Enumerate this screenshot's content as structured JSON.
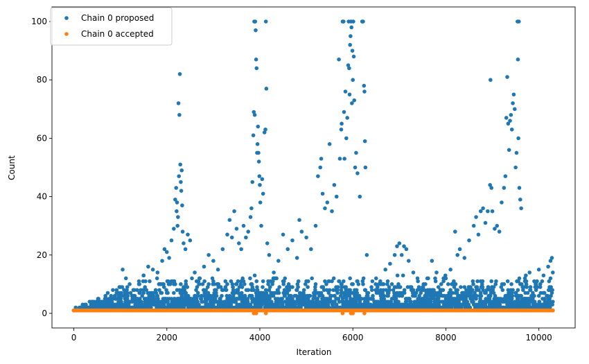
{
  "chart_data": {
    "type": "scatter",
    "xlabel": "Iteration",
    "ylabel": "Count",
    "xlim": [
      -470,
      10780
    ],
    "ylim": [
      -5,
      105
    ],
    "xticks": [
      0,
      2000,
      4000,
      6000,
      8000,
      10000
    ],
    "yticks": [
      0,
      20,
      40,
      60,
      80,
      100
    ],
    "grid": false,
    "legend_position": "upper-left",
    "series": [
      {
        "name": "Chain 0 proposed",
        "color": "#1f77b4",
        "points": [
          [
            0,
            1
          ],
          [
            40,
            1
          ],
          [
            80,
            1
          ],
          [
            120,
            2
          ],
          [
            160,
            1
          ],
          [
            200,
            2
          ],
          [
            260,
            3
          ],
          [
            320,
            2
          ],
          [
            380,
            4
          ],
          [
            450,
            3
          ],
          [
            520,
            5
          ],
          [
            600,
            4
          ],
          [
            680,
            6
          ],
          [
            760,
            5
          ],
          [
            840,
            8
          ],
          [
            920,
            7
          ],
          [
            1000,
            9
          ],
          [
            1050,
            15
          ],
          [
            1120,
            12
          ],
          [
            1200,
            10
          ],
          [
            1300,
            8
          ],
          [
            1400,
            11
          ],
          [
            1500,
            13
          ],
          [
            1600,
            16
          ],
          [
            1700,
            15
          ],
          [
            1800,
            14
          ],
          [
            1900,
            18
          ],
          [
            1950,
            22
          ],
          [
            2000,
            21
          ],
          [
            2050,
            19
          ],
          [
            2100,
            25
          ],
          [
            2150,
            29
          ],
          [
            2180,
            39
          ],
          [
            2200,
            43
          ],
          [
            2210,
            35
          ],
          [
            2220,
            38
          ],
          [
            2230,
            30
          ],
          [
            2240,
            33
          ],
          [
            2250,
            72
          ],
          [
            2260,
            47
          ],
          [
            2270,
            68
          ],
          [
            2280,
            82
          ],
          [
            2290,
            51
          ],
          [
            2300,
            45
          ],
          [
            2310,
            42
          ],
          [
            2320,
            49
          ],
          [
            2330,
            37
          ],
          [
            2340,
            28
          ],
          [
            2360,
            24
          ],
          [
            2400,
            22
          ],
          [
            2450,
            27
          ],
          [
            2500,
            25
          ],
          [
            2600,
            14
          ],
          [
            2700,
            12
          ],
          [
            2800,
            16
          ],
          [
            2900,
            20
          ],
          [
            3000,
            18
          ],
          [
            3100,
            15
          ],
          [
            3200,
            22
          ],
          [
            3300,
            27
          ],
          [
            3350,
            32
          ],
          [
            3400,
            26
          ],
          [
            3450,
            35
          ],
          [
            3500,
            29
          ],
          [
            3550,
            24
          ],
          [
            3600,
            22
          ],
          [
            3650,
            30
          ],
          [
            3700,
            26
          ],
          [
            3750,
            28
          ],
          [
            3800,
            33
          ],
          [
            3820,
            36
          ],
          [
            3840,
            45
          ],
          [
            3860,
            61
          ],
          [
            3870,
            69
          ],
          [
            3880,
            100
          ],
          [
            3890,
            68
          ],
          [
            3900,
            100
          ],
          [
            3910,
            97
          ],
          [
            3920,
            87
          ],
          [
            3930,
            84
          ],
          [
            3940,
            55
          ],
          [
            3950,
            58
          ],
          [
            3960,
            64
          ],
          [
            3970,
            55
          ],
          [
            3980,
            52
          ],
          [
            3990,
            47
          ],
          [
            4000,
            44
          ],
          [
            4010,
            38
          ],
          [
            4030,
            30
          ],
          [
            4050,
            46
          ],
          [
            4070,
            41
          ],
          [
            4100,
            62
          ],
          [
            4120,
            63
          ],
          [
            4130,
            100
          ],
          [
            4140,
            77
          ],
          [
            4160,
            24
          ],
          [
            4200,
            20
          ],
          [
            4300,
            14
          ],
          [
            4400,
            18
          ],
          [
            4500,
            27
          ],
          [
            4600,
            22
          ],
          [
            4700,
            25
          ],
          [
            4800,
            19
          ],
          [
            4850,
            32
          ],
          [
            4900,
            28
          ],
          [
            5000,
            26
          ],
          [
            5100,
            22
          ],
          [
            5200,
            30
          ],
          [
            5250,
            47
          ],
          [
            5300,
            50
          ],
          [
            5320,
            53
          ],
          [
            5350,
            41
          ],
          [
            5400,
            36
          ],
          [
            5450,
            38
          ],
          [
            5500,
            58
          ],
          [
            5550,
            35
          ],
          [
            5600,
            44
          ],
          [
            5650,
            40
          ],
          [
            5700,
            87
          ],
          [
            5720,
            53
          ],
          [
            5750,
            63
          ],
          [
            5760,
            65
          ],
          [
            5780,
            100
          ],
          [
            5800,
            100
          ],
          [
            5810,
            69
          ],
          [
            5820,
            53
          ],
          [
            5840,
            76
          ],
          [
            5860,
            60
          ],
          [
            5880,
            67
          ],
          [
            5900,
            85
          ],
          [
            5910,
            100
          ],
          [
            5920,
            84
          ],
          [
            5930,
            75
          ],
          [
            5940,
            92
          ],
          [
            5950,
            95
          ],
          [
            5960,
            100
          ],
          [
            5970,
            98
          ],
          [
            5980,
            72
          ],
          [
            5990,
            90
          ],
          [
            6000,
            80
          ],
          [
            6010,
            100
          ],
          [
            6020,
            88
          ],
          [
            6030,
            73
          ],
          [
            6050,
            50
          ],
          [
            6070,
            55
          ],
          [
            6100,
            48
          ],
          [
            6150,
            40
          ],
          [
            6200,
            100
          ],
          [
            6220,
            100
          ],
          [
            6240,
            78
          ],
          [
            6250,
            76
          ],
          [
            6260,
            59
          ],
          [
            6270,
            50
          ],
          [
            6300,
            20
          ],
          [
            6400,
            9
          ],
          [
            6500,
            12
          ],
          [
            6600,
            10
          ],
          [
            6700,
            15
          ],
          [
            6800,
            17
          ],
          [
            6900,
            20
          ],
          [
            6950,
            23
          ],
          [
            7000,
            24
          ],
          [
            7050,
            20
          ],
          [
            7100,
            23
          ],
          [
            7150,
            22
          ],
          [
            7200,
            18
          ],
          [
            7300,
            14
          ],
          [
            7400,
            11
          ],
          [
            7500,
            9
          ],
          [
            7600,
            12
          ],
          [
            7700,
            18
          ],
          [
            7800,
            14
          ],
          [
            7900,
            10
          ],
          [
            8000,
            12
          ],
          [
            8100,
            15
          ],
          [
            8200,
            28
          ],
          [
            8250,
            20
          ],
          [
            8300,
            22
          ],
          [
            8400,
            19
          ],
          [
            8500,
            25
          ],
          [
            8600,
            30
          ],
          [
            8650,
            33
          ],
          [
            8700,
            27
          ],
          [
            8750,
            35
          ],
          [
            8800,
            36
          ],
          [
            8850,
            31
          ],
          [
            8900,
            35
          ],
          [
            8950,
            44
          ],
          [
            8960,
            80
          ],
          [
            8980,
            43
          ],
          [
            9000,
            35
          ],
          [
            9050,
            29
          ],
          [
            9100,
            30
          ],
          [
            9150,
            28
          ],
          [
            9200,
            38
          ],
          [
            9250,
            43
          ],
          [
            9280,
            47
          ],
          [
            9300,
            67
          ],
          [
            9320,
            81
          ],
          [
            9340,
            65
          ],
          [
            9360,
            56
          ],
          [
            9380,
            66
          ],
          [
            9400,
            68
          ],
          [
            9420,
            63
          ],
          [
            9440,
            72
          ],
          [
            9460,
            75
          ],
          [
            9480,
            70
          ],
          [
            9500,
            50
          ],
          [
            9520,
            55
          ],
          [
            9540,
            100
          ],
          [
            9550,
            87
          ],
          [
            9560,
            60
          ],
          [
            9570,
            100
          ],
          [
            9580,
            43
          ],
          [
            9600,
            39
          ],
          [
            9620,
            36
          ],
          [
            9700,
            12
          ],
          [
            9800,
            14
          ],
          [
            9900,
            11
          ],
          [
            10000,
            15
          ],
          [
            10100,
            13
          ],
          [
            10200,
            16
          ],
          [
            10250,
            18
          ],
          [
            10280,
            19
          ],
          [
            10300,
            14
          ]
        ]
      },
      {
        "name": "Chain 0 accepted",
        "color": "#ff7f0e",
        "points": [
          [
            0,
            1
          ],
          [
            200,
            1
          ],
          [
            500,
            1
          ],
          [
            1000,
            1
          ],
          [
            1500,
            1
          ],
          [
            2000,
            1
          ],
          [
            2500,
            1
          ],
          [
            3000,
            1
          ],
          [
            3500,
            1
          ],
          [
            3870,
            0
          ],
          [
            3920,
            0
          ],
          [
            4000,
            1
          ],
          [
            4130,
            0
          ],
          [
            4500,
            1
          ],
          [
            5000,
            1
          ],
          [
            5500,
            1
          ],
          [
            5780,
            0
          ],
          [
            5960,
            0
          ],
          [
            6000,
            0
          ],
          [
            6250,
            0
          ],
          [
            6500,
            1
          ],
          [
            7000,
            1
          ],
          [
            7500,
            1
          ],
          [
            8000,
            1
          ],
          [
            8500,
            1
          ],
          [
            9000,
            1
          ],
          [
            9500,
            1
          ],
          [
            10000,
            1
          ],
          [
            10300,
            1
          ]
        ]
      }
    ]
  }
}
